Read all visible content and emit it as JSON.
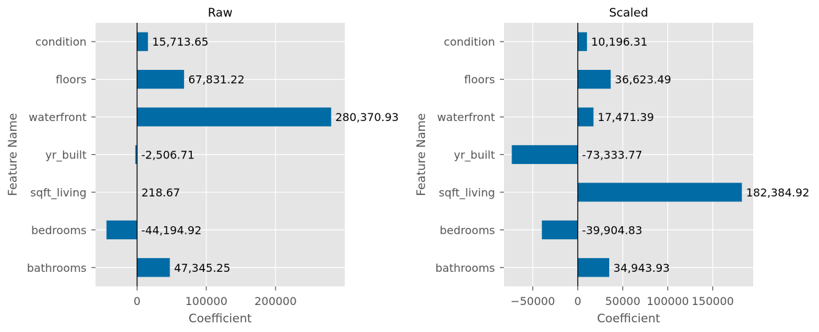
{
  "chart_data": [
    {
      "type": "bar",
      "orientation": "horizontal",
      "title": "Raw",
      "xlabel": "Coefficient",
      "ylabel": "Feature Name",
      "categories": [
        "bathrooms",
        "bedrooms",
        "sqft_living",
        "yr_built",
        "waterfront",
        "floors",
        "condition"
      ],
      "values": [
        47345.25,
        -44194.92,
        218.67,
        -2506.71,
        280370.93,
        67831.22,
        15713.65
      ],
      "value_labels": [
        "47,345.25",
        "-44,194.92",
        "218.67",
        "-2,506.71",
        "280,370.93",
        "67,831.22",
        "15,713.65"
      ],
      "xlim": [
        -60000,
        300000
      ],
      "xticks": [
        0,
        100000,
        200000
      ],
      "xtick_labels": [
        "0",
        "100000",
        "200000"
      ],
      "grid": true,
      "bar_color": "#006ba4"
    },
    {
      "type": "bar",
      "orientation": "horizontal",
      "title": "Scaled",
      "xlabel": "Coefficient",
      "ylabel": "Feature Name",
      "categories": [
        "bathrooms",
        "bedrooms",
        "sqft_living",
        "yr_built",
        "waterfront",
        "floors",
        "condition"
      ],
      "values": [
        34943.93,
        -39904.83,
        182384.92,
        -73333.77,
        17471.39,
        36623.49,
        10196.31
      ],
      "value_labels": [
        "34,943.93",
        "-39,904.83",
        "182,384.92",
        "-73,333.77",
        "17,471.39",
        "36,623.49",
        "10,196.31"
      ],
      "xlim": [
        -82000,
        195000
      ],
      "xticks": [
        -50000,
        0,
        50000,
        100000,
        150000
      ],
      "xtick_labels": [
        "−50000",
        "0",
        "50000",
        "100000",
        "150000"
      ],
      "grid": true,
      "bar_color": "#006ba4"
    }
  ]
}
